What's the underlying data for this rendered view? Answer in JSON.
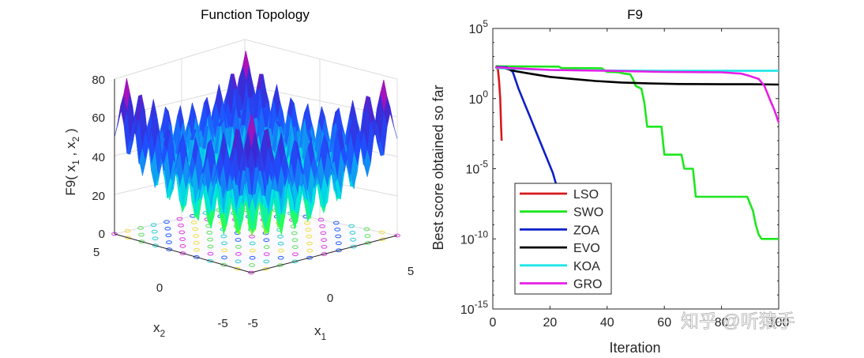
{
  "chart_data": [
    {
      "type": "surface",
      "title": "Function Topology",
      "zlabel_main": "F9( x",
      "zlabel_sub1": "1",
      "zlabel_sep": " , x",
      "zlabel_sub2": "2",
      "zlabel_end": " )",
      "xlabel_main": "x",
      "xlabel_sub": "1",
      "ylabel_main": "x",
      "ylabel_sub": "2",
      "zticks": [
        "0",
        "20",
        "40",
        "60",
        "80"
      ],
      "zlim": [
        0,
        80
      ],
      "xticks": [
        "-5",
        "0",
        "5"
      ],
      "yticks": [
        "-5",
        "0",
        "5"
      ],
      "xlim": [
        -5,
        5
      ],
      "ylim": [
        -5,
        5
      ]
    },
    {
      "type": "line",
      "title": "F9",
      "xlabel": "Iteration",
      "ylabel": "Best score obtained so far",
      "yscale": "log",
      "xlim": [
        0,
        100
      ],
      "ylim": [
        1e-15,
        100000.0
      ],
      "xticks": [
        "0",
        "20",
        "40",
        "60",
        "80",
        "100"
      ],
      "yticks": [
        {
          "base": "10",
          "exp": "5",
          "value": 5
        },
        {
          "base": "10",
          "exp": "0",
          "value": 0
        },
        {
          "base": "10",
          "exp": "-5",
          "value": -5
        },
        {
          "base": "10",
          "exp": "-10",
          "value": -10
        },
        {
          "base": "10",
          "exp": "-15",
          "value": -15
        }
      ],
      "legend_position": "bottom-left",
      "series": [
        {
          "name": "LSO",
          "color": "#d7191c",
          "points": [
            [
              1,
              180
            ],
            [
              1.8,
              120
            ],
            [
              2.2,
              15
            ],
            [
              2.6,
              1
            ],
            [
              2.9,
              0.01
            ],
            [
              3.1,
              0.001
            ]
          ]
        },
        {
          "name": "SWO",
          "color": "#1ee61e",
          "points": [
            [
              1,
              200
            ],
            [
              23,
              190
            ],
            [
              24,
              150
            ],
            [
              38,
              145
            ],
            [
              40,
              80
            ],
            [
              44,
              75
            ],
            [
              46,
              60
            ],
            [
              48,
              55
            ],
            [
              49,
              25
            ],
            [
              50,
              8
            ],
            [
              52,
              5
            ],
            [
              53,
              0.5
            ],
            [
              54,
              0.01
            ],
            [
              58,
              0.01
            ],
            [
              59,
              0.01
            ],
            [
              60,
              0.0001
            ],
            [
              66,
              0.0001
            ],
            [
              67,
              1e-05
            ],
            [
              70,
              1e-05
            ],
            [
              71,
              1e-07
            ],
            [
              89,
              1e-07
            ],
            [
              91,
              1e-08
            ],
            [
              92,
              1e-09
            ],
            [
              93,
              2e-10
            ],
            [
              94,
              1e-10
            ],
            [
              100,
              1e-10
            ]
          ]
        },
        {
          "name": "ZOA",
          "color": "#0d20c8",
          "points": [
            [
              1,
              180
            ],
            [
              5,
              170
            ],
            [
              7,
              80
            ],
            [
              9,
              5
            ],
            [
              11,
              0.5
            ],
            [
              13,
              0.05
            ],
            [
              15,
              0.005
            ],
            [
              17,
              0.0005
            ],
            [
              19,
              5e-05
            ],
            [
              21,
              5e-06
            ],
            [
              22,
              1e-06
            ],
            [
              23,
              4e-07
            ]
          ]
        },
        {
          "name": "EVO",
          "color": "#000000",
          "points": [
            [
              1,
              180
            ],
            [
              4,
              150
            ],
            [
              8,
              90
            ],
            [
              13,
              60
            ],
            [
              20,
              35
            ],
            [
              28,
              25
            ],
            [
              36,
              18
            ],
            [
              45,
              14
            ],
            [
              55,
              12
            ],
            [
              65,
              11
            ],
            [
              80,
              10.5
            ],
            [
              90,
              10.5
            ],
            [
              100,
              10
            ]
          ]
        },
        {
          "name": "KOA",
          "color": "#1ee6e6",
          "points": [
            [
              1,
              150
            ],
            [
              20,
              110
            ],
            [
              40,
              100
            ],
            [
              60,
              95
            ],
            [
              80,
              95
            ],
            [
              100,
              95
            ]
          ]
        },
        {
          "name": "GRO",
          "color": "#e61ee6",
          "points": [
            [
              1,
              170
            ],
            [
              20,
              110
            ],
            [
              40,
              95
            ],
            [
              60,
              80
            ],
            [
              80,
              75
            ],
            [
              87,
              60
            ],
            [
              90,
              40
            ],
            [
              93,
              25
            ],
            [
              95,
              8
            ],
            [
              97,
              0.8
            ],
            [
              98.5,
              0.15
            ],
            [
              100,
              0.02
            ]
          ]
        }
      ]
    }
  ],
  "watermark": "知乎 @听猿手"
}
